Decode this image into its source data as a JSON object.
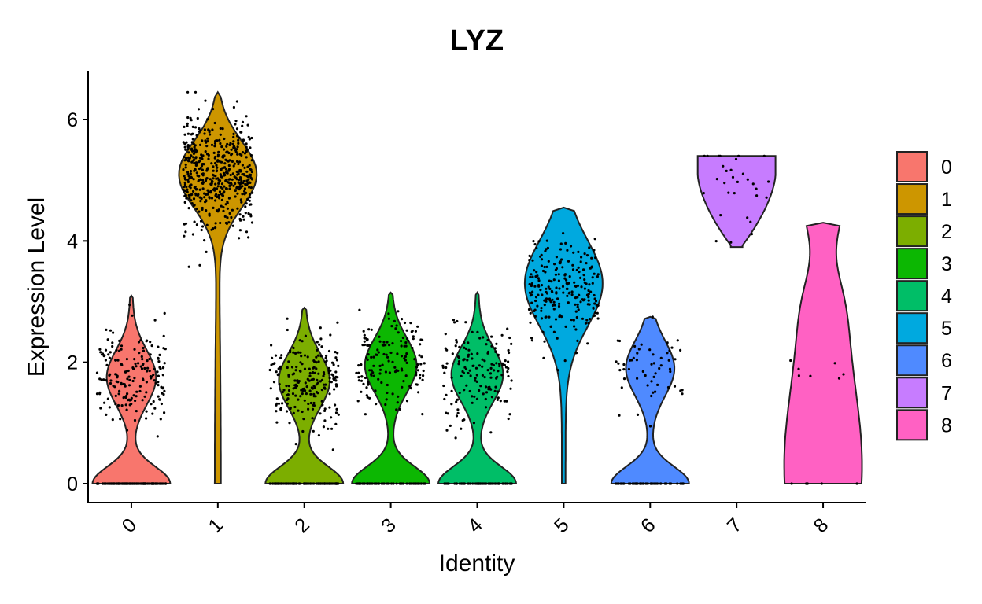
{
  "chart_data": {
    "type": "violin",
    "title": "LYZ",
    "xlabel": "Identity",
    "ylabel": "Expression Level",
    "ylim": [
      -0.3,
      6.8
    ],
    "yticks": [
      0,
      2,
      4,
      6
    ],
    "categories": [
      "0",
      "1",
      "2",
      "3",
      "4",
      "5",
      "6",
      "7",
      "8"
    ],
    "colors": [
      "#F8766D",
      "#CD9600",
      "#7CAE00",
      "#0CB702",
      "#00BE67",
      "#00A9DF",
      "#4F8AFF",
      "#C77CFF",
      "#FF61C3"
    ],
    "series": [
      {
        "name": "0",
        "max": 3.1,
        "high_center": 1.75,
        "zero_fraction": 0.45,
        "n_points": 340
      },
      {
        "name": "1",
        "max": 6.45,
        "high_center": 5.1,
        "zero_fraction": 0.0,
        "n_points": 520
      },
      {
        "name": "2",
        "max": 2.9,
        "high_center": 1.7,
        "zero_fraction": 0.35,
        "n_points": 330
      },
      {
        "name": "3",
        "max": 3.15,
        "high_center": 1.95,
        "zero_fraction": 0.3,
        "n_points": 220
      },
      {
        "name": "4",
        "max": 3.15,
        "high_center": 1.8,
        "zero_fraction": 0.3,
        "n_points": 220
      },
      {
        "name": "5",
        "max": 4.55,
        "high_center": 3.2,
        "zero_fraction": 0.0,
        "n_points": 230
      },
      {
        "name": "6",
        "max": 2.75,
        "high_center": 1.9,
        "zero_fraction": 0.5,
        "n_points": 110
      },
      {
        "name": "7",
        "max": 5.4,
        "min": 3.9,
        "high_center": 4.95,
        "zero_fraction": 0.0,
        "n_points": 30
      },
      {
        "name": "8",
        "max": 4.3,
        "high_center": 2.0,
        "zero_fraction": 0.4,
        "n_points": 12
      }
    ],
    "grid": false,
    "legend": "right",
    "xtick_rotation": 45
  }
}
